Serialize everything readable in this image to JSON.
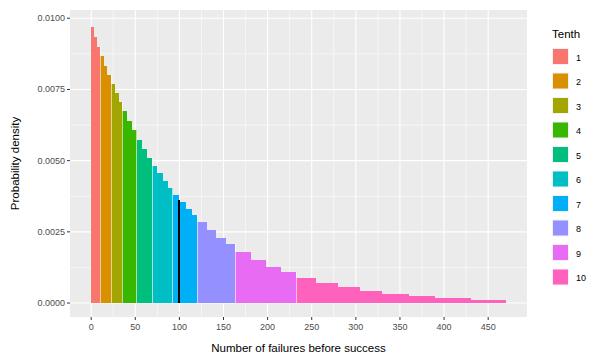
{
  "chart_data": {
    "type": "histogram",
    "x_label": "Number of failures before success",
    "y_label": "Probability density",
    "legend_title": "Tenth",
    "legend": "right",
    "grid": true,
    "xlim": [
      -24,
      494
    ],
    "xticks": [
      0,
      50,
      100,
      150,
      200,
      250,
      300,
      350,
      400,
      450
    ],
    "ylim": [
      -0.00049,
      0.01029
    ],
    "yticks": [
      {
        "value": 0,
        "label": "0.0000"
      },
      {
        "value": 0.0025,
        "label": "0.0025"
      },
      {
        "value": 0.005,
        "label": "0.0050"
      },
      {
        "value": 0.0075,
        "label": "0.0075"
      },
      {
        "value": 0.01,
        "label": "0.0100"
      }
    ],
    "vline": {
      "x": 100,
      "height": 0.00363,
      "color": "#000000"
    },
    "series": [
      {
        "name": "1",
        "color": "#F8766D",
        "bins": [
          -0.5,
          3,
          7,
          10.5
        ],
        "values": [
          0.00968,
          0.00933,
          0.00899
        ]
      },
      {
        "name": "2",
        "color": "#D89000",
        "bins": [
          10.5,
          14.5,
          18.5,
          22.5
        ],
        "values": [
          0.00867,
          0.00833,
          0.00801
        ]
      },
      {
        "name": "3",
        "color": "#A3A500",
        "bins": [
          22.5,
          26.5,
          31,
          35.5
        ],
        "values": [
          0.0077,
          0.00738,
          0.00706
        ]
      },
      {
        "name": "4",
        "color": "#39B600",
        "bins": [
          35.5,
          40.5,
          46,
          51.5
        ],
        "values": [
          0.00674,
          0.0064,
          0.00606
        ]
      },
      {
        "name": "5",
        "color": "#00BF7D",
        "bins": [
          51.5,
          57.5,
          63.5,
          69.5
        ],
        "values": [
          0.00573,
          0.0054,
          0.00509
        ]
      },
      {
        "name": "6",
        "color": "#00BFC4",
        "bins": [
          69.5,
          75,
          81,
          87,
          92.5
        ],
        "values": [
          0.00481,
          0.00455,
          0.00429,
          0.00405
        ]
      },
      {
        "name": "7",
        "color": "#00B0F6",
        "bins": [
          92.5,
          100,
          107,
          114,
          120.5
        ],
        "values": [
          0.0038,
          0.00354,
          0.0033,
          0.00309
        ]
      },
      {
        "name": "8",
        "color": "#9590FF",
        "bins": [
          120.5,
          131,
          142,
          153,
          163.5
        ],
        "values": [
          0.00284,
          0.00256,
          0.00229,
          0.00206
        ]
      },
      {
        "name": "9",
        "color": "#E76BF3",
        "bins": [
          163.5,
          181,
          198,
          215,
          232.5
        ],
        "values": [
          0.0018,
          0.00152,
          0.00128,
          0.00108
        ]
      },
      {
        "name": "10",
        "color": "#FF62BC",
        "bins": [
          232.5,
          255,
          280,
          305,
          330,
          360,
          390,
          430,
          470.5
        ],
        "values": [
          0.00089,
          0.0007,
          0.00055,
          0.00043,
          0.00033,
          0.00024,
          0.00017,
          0.00012
        ]
      }
    ]
  }
}
